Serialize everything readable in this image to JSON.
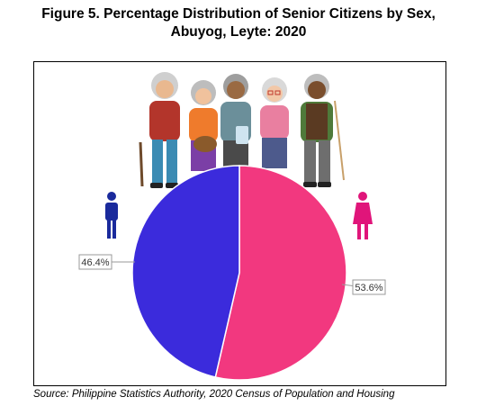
{
  "figure": {
    "title_line1": "Figure 5. Percentage Distribution of Senior Citizens by Sex,",
    "title_line2": "Abuyog, Leyte: 2020",
    "source": "Source: Philippine Statistics Authority, 2020 Census of Population and Housing"
  },
  "chart_data": {
    "type": "pie",
    "labels": [
      "46.4%",
      "53.6%"
    ],
    "values": [
      46.4,
      53.6
    ],
    "colors": [
      "#3b2bdc",
      "#f2387f"
    ],
    "icons": [
      "male-icon",
      "female-icon"
    ]
  }
}
